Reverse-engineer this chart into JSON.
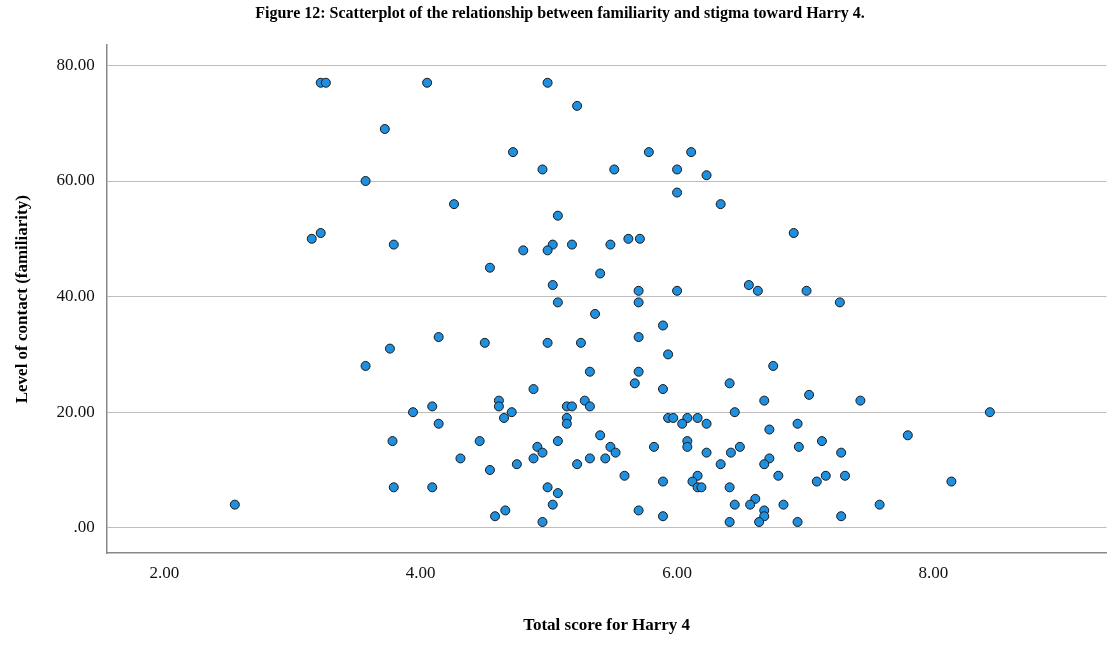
{
  "chart_data": {
    "type": "scatter",
    "title": "Figure 12: Scatterplot of the relationship between familiarity and stigma toward Harry 4.",
    "xlabel": "Total score for Harry 4",
    "ylabel": "Level of contact (familiarity)",
    "xlim": [
      1.55,
      9.35
    ],
    "ylim": [
      -4.4,
      83.5
    ],
    "xticks": [
      {
        "value": 2,
        "label": "2.00"
      },
      {
        "value": 4,
        "label": "4.00"
      },
      {
        "value": 6,
        "label": "6.00"
      },
      {
        "value": 8,
        "label": "8.00"
      }
    ],
    "yticks": [
      {
        "value": 0,
        "label": ".00"
      },
      {
        "value": 20,
        "label": "20.00"
      },
      {
        "value": 40,
        "label": "40.00"
      },
      {
        "value": 60,
        "label": "60.00"
      },
      {
        "value": 80,
        "label": "80.00"
      }
    ],
    "grid": "y",
    "legend": false,
    "marker": "circle",
    "series": [
      {
        "color": "#1f8fe0",
        "x": [
          3.22,
          3.26,
          4.05,
          4.99,
          5.22,
          3.72,
          4.72,
          5.78,
          6.11,
          4.95,
          5.51,
          6.0,
          6.23,
          3.57,
          6.0,
          4.26,
          6.34,
          5.07,
          3.22,
          6.91,
          3.15,
          5.62,
          5.71,
          3.79,
          5.03,
          5.18,
          5.48,
          4.8,
          4.99,
          4.54,
          5.4,
          5.03,
          6.56,
          5.7,
          6.0,
          6.63,
          7.01,
          5.07,
          5.7,
          7.27,
          5.36,
          5.89,
          4.14,
          5.7,
          4.5,
          4.99,
          5.25,
          3.76,
          5.93,
          3.57,
          6.75,
          5.32,
          5.7,
          5.67,
          6.41,
          4.88,
          5.89,
          7.03,
          4.61,
          5.28,
          6.68,
          7.43,
          4.09,
          4.61,
          5.14,
          5.18,
          5.32,
          3.94,
          4.71,
          6.45,
          8.44,
          4.65,
          5.14,
          5.93,
          5.97,
          6.08,
          6.16,
          4.14,
          5.14,
          6.04,
          6.23,
          6.94,
          6.72,
          5.4,
          7.8,
          3.78,
          4.46,
          5.07,
          6.08,
          7.13,
          4.91,
          5.48,
          5.82,
          6.08,
          6.49,
          6.95,
          4.95,
          5.52,
          6.23,
          6.42,
          7.28,
          4.31,
          4.88,
          5.32,
          5.44,
          6.72,
          4.75,
          5.22,
          6.34,
          6.68,
          4.54,
          5.59,
          6.16,
          6.79,
          7.16,
          7.31,
          5.89,
          6.12,
          7.09,
          8.14,
          3.79,
          4.09,
          4.99,
          6.16,
          6.19,
          6.41,
          5.07,
          6.61,
          2.55,
          5.03,
          6.45,
          6.57,
          6.83,
          7.58,
          4.66,
          5.7,
          6.68,
          4.58,
          5.89,
          6.68,
          7.28,
          4.95,
          6.41,
          6.64,
          6.94
        ],
        "values": [
          77,
          77,
          77,
          77,
          73,
          69,
          65,
          65,
          65,
          62,
          62,
          62,
          61,
          60,
          58,
          56,
          56,
          54,
          51,
          51,
          50,
          50,
          50,
          49,
          49,
          49,
          49,
          48,
          48,
          45,
          44,
          42,
          42,
          41,
          41,
          41,
          41,
          39,
          39,
          39,
          37,
          35,
          33,
          33,
          32,
          32,
          32,
          31,
          30,
          28,
          28,
          27,
          27,
          25,
          25,
          24,
          24,
          23,
          22,
          22,
          22,
          22,
          21,
          21,
          21,
          21,
          21,
          20,
          20,
          20,
          20,
          19,
          19,
          19,
          19,
          19,
          19,
          18,
          18,
          18,
          18,
          18,
          17,
          16,
          16,
          15,
          15,
          15,
          15,
          15,
          14,
          14,
          14,
          14,
          14,
          14,
          13,
          13,
          13,
          13,
          13,
          12,
          12,
          12,
          12,
          12,
          11,
          11,
          11,
          11,
          10,
          9,
          9,
          9,
          9,
          9,
          8,
          8,
          8,
          8,
          7,
          7,
          7,
          7,
          7,
          7,
          6,
          5,
          4,
          4,
          4,
          4,
          4,
          4,
          3,
          3,
          3,
          2,
          2,
          2,
          2,
          1,
          1,
          1,
          1
        ]
      }
    ]
  }
}
